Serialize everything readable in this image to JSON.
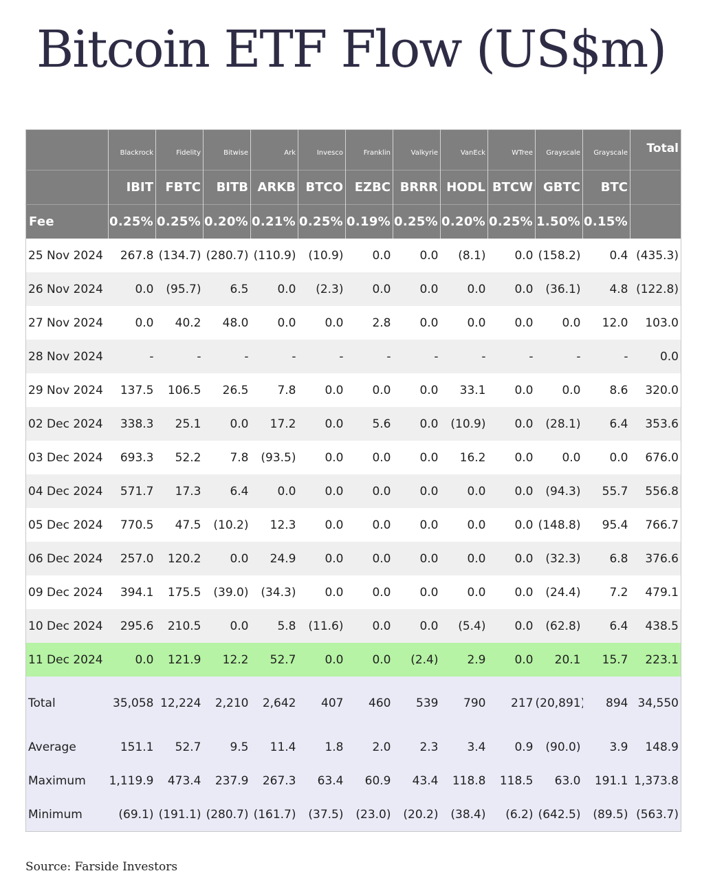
{
  "title": "Bitcoin ETF Flow (US$m)",
  "source": "Source: Farside Investors",
  "header": {
    "issuers": [
      "Blackrock",
      "Fidelity",
      "Bitwise",
      "Ark",
      "Invesco",
      "Franklin",
      "Valkyrie",
      "VanEck",
      "WTree",
      "Grayscale",
      "Grayscale"
    ],
    "total_label": "Total",
    "tickers": [
      "IBIT",
      "FBTC",
      "BITB",
      "ARKB",
      "BTCO",
      "EZBC",
      "BRRR",
      "HODL",
      "BTCW",
      "GBTC",
      "BTC"
    ],
    "fee_label": "Fee",
    "fees": [
      "0.25%",
      "0.25%",
      "0.20%",
      "0.21%",
      "0.25%",
      "0.19%",
      "0.25%",
      "0.20%",
      "0.25%",
      "1.50%",
      "0.15%"
    ]
  },
  "rows": [
    {
      "date": "25 Nov 2024",
      "cells": [
        "267.8",
        "(134.7)",
        "(280.7)",
        "(110.9)",
        "(10.9)",
        "0.0",
        "0.0",
        "(8.1)",
        "0.0",
        "(158.2)",
        "0.4",
        "(435.3)"
      ]
    },
    {
      "date": "26 Nov 2024",
      "cells": [
        "0.0",
        "(95.7)",
        "6.5",
        "0.0",
        "(2.3)",
        "0.0",
        "0.0",
        "0.0",
        "0.0",
        "(36.1)",
        "4.8",
        "(122.8)"
      ]
    },
    {
      "date": "27 Nov 2024",
      "cells": [
        "0.0",
        "40.2",
        "48.0",
        "0.0",
        "0.0",
        "2.8",
        "0.0",
        "0.0",
        "0.0",
        "0.0",
        "12.0",
        "103.0"
      ]
    },
    {
      "date": "28 Nov 2024",
      "cells": [
        "-",
        "-",
        "-",
        "-",
        "-",
        "-",
        "-",
        "-",
        "-",
        "-",
        "-",
        "0.0"
      ]
    },
    {
      "date": "29 Nov 2024",
      "cells": [
        "137.5",
        "106.5",
        "26.5",
        "7.8",
        "0.0",
        "0.0",
        "0.0",
        "33.1",
        "0.0",
        "0.0",
        "8.6",
        "320.0"
      ]
    },
    {
      "date": "02 Dec 2024",
      "cells": [
        "338.3",
        "25.1",
        "0.0",
        "17.2",
        "0.0",
        "5.6",
        "0.0",
        "(10.9)",
        "0.0",
        "(28.1)",
        "6.4",
        "353.6"
      ]
    },
    {
      "date": "03 Dec 2024",
      "cells": [
        "693.3",
        "52.2",
        "7.8",
        "(93.5)",
        "0.0",
        "0.0",
        "0.0",
        "16.2",
        "0.0",
        "0.0",
        "0.0",
        "676.0"
      ]
    },
    {
      "date": "04 Dec 2024",
      "cells": [
        "571.7",
        "17.3",
        "6.4",
        "0.0",
        "0.0",
        "0.0",
        "0.0",
        "0.0",
        "0.0",
        "(94.3)",
        "55.7",
        "556.8"
      ]
    },
    {
      "date": "05 Dec 2024",
      "cells": [
        "770.5",
        "47.5",
        "(10.2)",
        "12.3",
        "0.0",
        "0.0",
        "0.0",
        "0.0",
        "0.0",
        "(148.8)",
        "95.4",
        "766.7"
      ]
    },
    {
      "date": "06 Dec 2024",
      "cells": [
        "257.0",
        "120.2",
        "0.0",
        "24.9",
        "0.0",
        "0.0",
        "0.0",
        "0.0",
        "0.0",
        "(32.3)",
        "6.8",
        "376.6"
      ]
    },
    {
      "date": "09 Dec 2024",
      "cells": [
        "394.1",
        "175.5",
        "(39.0)",
        "(34.3)",
        "0.0",
        "0.0",
        "0.0",
        "0.0",
        "0.0",
        "(24.4)",
        "7.2",
        "479.1"
      ]
    },
    {
      "date": "10 Dec 2024",
      "cells": [
        "295.6",
        "210.5",
        "0.0",
        "5.8",
        "(11.6)",
        "0.0",
        "0.0",
        "(5.4)",
        "0.0",
        "(62.8)",
        "6.4",
        "438.5"
      ]
    },
    {
      "date": "11 Dec 2024",
      "highlight": true,
      "cells": [
        "0.0",
        "121.9",
        "12.2",
        "52.7",
        "0.0",
        "0.0",
        "(2.4)",
        "2.9",
        "0.0",
        "20.1",
        "15.7",
        "223.1"
      ]
    }
  ],
  "summary": [
    {
      "label": "Total",
      "cells": [
        "35,058",
        "12,224",
        "2,210",
        "2,642",
        "407",
        "460",
        "539",
        "790",
        "217",
        "(20,891)",
        "894",
        "34,550"
      ]
    },
    {
      "label": "Average",
      "cells": [
        "151.1",
        "52.7",
        "9.5",
        "11.4",
        "1.8",
        "2.0",
        "2.3",
        "3.4",
        "0.9",
        "(90.0)",
        "3.9",
        "148.9"
      ]
    },
    {
      "label": "Maximum",
      "cells": [
        "1,119.9",
        "473.4",
        "237.9",
        "267.3",
        "63.4",
        "60.9",
        "43.4",
        "118.8",
        "118.5",
        "63.0",
        "191.1",
        "1,373.8"
      ]
    },
    {
      "label": "Minimum",
      "cells": [
        "(69.1)",
        "(191.1)",
        "(280.7)",
        "(161.7)",
        "(37.5)",
        "(23.0)",
        "(20.2)",
        "(38.4)",
        "(6.2)",
        "(642.5)",
        "(89.5)",
        "(563.7)"
      ]
    }
  ],
  "colors": {
    "header_bg": "#7f7f7f",
    "negative": "#d2382f",
    "highlight_row": "#b6f3a4",
    "summary_bg": "#e9eaf6",
    "stripe": "#efefef"
  }
}
